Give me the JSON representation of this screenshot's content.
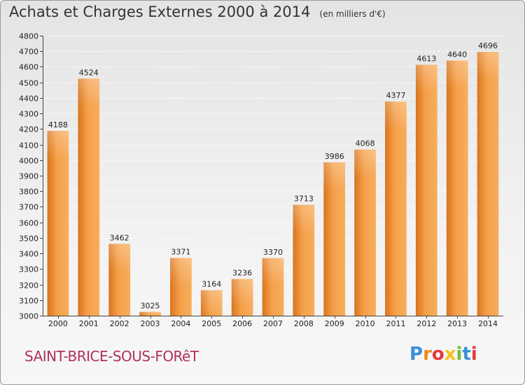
{
  "header": {
    "title": "Achats et Charges Externes 2000 à 2014",
    "subtitle": "(en milliers d'€)"
  },
  "footer": {
    "city": "SAINT-BRICE-SOUS-FORêT",
    "logo_letters": [
      "P",
      "r",
      "o",
      "x",
      "i",
      "t",
      "i"
    ],
    "logo_colors": [
      "#3a8fd8",
      "#f08a1c",
      "#e43a3a",
      "#f5c218",
      "#6fbf3a",
      "#3a8fd8",
      "#e43a3a"
    ]
  },
  "chart_data": {
    "type": "bar",
    "title": "Achats et Charges Externes 2000 à 2014",
    "subtitle": "(en milliers d'€)",
    "categories": [
      "2000",
      "2001",
      "2002",
      "2003",
      "2004",
      "2005",
      "2006",
      "2007",
      "2008",
      "2009",
      "2010",
      "2011",
      "2012",
      "2013",
      "2014"
    ],
    "values": [
      4188,
      4524,
      3462,
      3025,
      3371,
      3164,
      3236,
      3370,
      3713,
      3986,
      4068,
      4377,
      4613,
      4640,
      4696
    ],
    "ylim": [
      3000,
      4800
    ],
    "yticks": [
      3000,
      3100,
      3200,
      3300,
      3400,
      3500,
      3600,
      3700,
      3800,
      3900,
      4000,
      4100,
      4200,
      4300,
      4400,
      4500,
      4600,
      4700,
      4800
    ],
    "grid": true,
    "bar_color": "#f5a04a",
    "bar_color_dark": "#d9741c"
  }
}
